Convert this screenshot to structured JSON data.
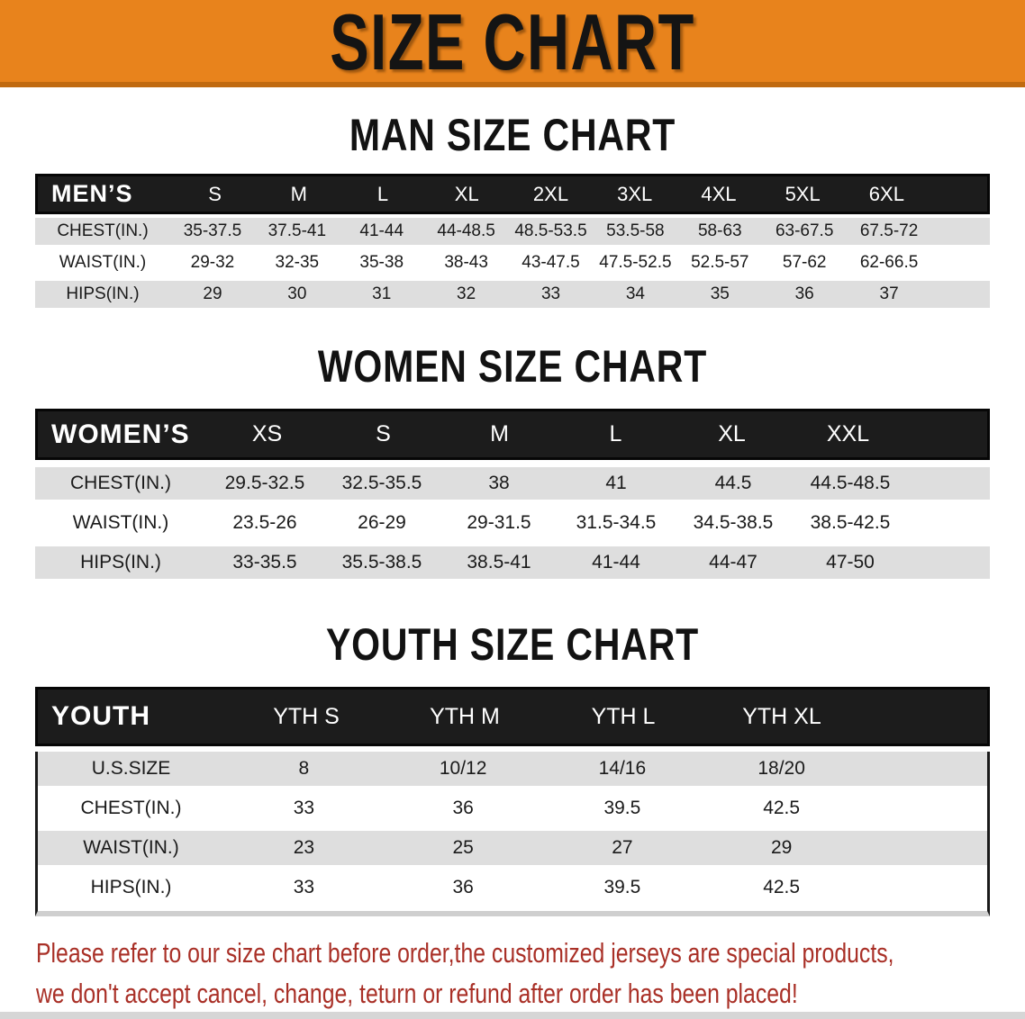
{
  "banner": {
    "title": "SIZE CHART"
  },
  "sections": [
    {
      "heading": "MAN SIZE CHART",
      "table": {
        "header_label": "MEN’S",
        "columns": [
          "S",
          "M",
          "L",
          "XL",
          "2XL",
          "3XL",
          "4XL",
          "5XL",
          "6XL"
        ],
        "rows": [
          {
            "label": "CHEST(IN.)",
            "values": [
              "35-37.5",
              "37.5-41",
              "41-44",
              "44-48.5",
              "48.5-53.5",
              "53.5-58",
              "58-63",
              "63-67.5",
              "67.5-72"
            ]
          },
          {
            "label": "WAIST(IN.)",
            "values": [
              "29-32",
              "32-35",
              "35-38",
              "38-43",
              "43-47.5",
              "47.5-52.5",
              "52.5-57",
              "57-62",
              "62-66.5"
            ]
          },
          {
            "label": "HIPS(IN.)",
            "values": [
              "29",
              "30",
              "31",
              "32",
              "33",
              "34",
              "35",
              "36",
              "37"
            ]
          }
        ]
      }
    },
    {
      "heading": "WOMEN SIZE CHART",
      "table": {
        "header_label": "WOMEN’S",
        "columns": [
          "XS",
          "S",
          "M",
          "L",
          "XL",
          "XXL"
        ],
        "rows": [
          {
            "label": "CHEST(IN.)",
            "values": [
              "29.5-32.5",
              "32.5-35.5",
              "38",
              "41",
              "44.5",
              "44.5-48.5"
            ]
          },
          {
            "label": "WAIST(IN.)",
            "values": [
              "23.5-26",
              "26-29",
              "29-31.5",
              "31.5-34.5",
              "34.5-38.5",
              "38.5-42.5"
            ]
          },
          {
            "label": "HIPS(IN.)",
            "values": [
              "33-35.5",
              "35.5-38.5",
              "38.5-41",
              "41-44",
              "44-47",
              "47-50"
            ]
          }
        ]
      }
    },
    {
      "heading": "YOUTH SIZE CHART",
      "table": {
        "header_label": "YOUTH",
        "columns": [
          "YTH S",
          "YTH M",
          "YTH L",
          "YTH XL"
        ],
        "rows": [
          {
            "label": "U.S.SIZE",
            "values": [
              "8",
              "10/12",
              "14/16",
              "18/20"
            ]
          },
          {
            "label": "CHEST(IN.)",
            "values": [
              "33",
              "36",
              "39.5",
              "42.5"
            ]
          },
          {
            "label": "WAIST(IN.)",
            "values": [
              "23",
              "25",
              "27",
              "29"
            ]
          },
          {
            "label": "HIPS(IN.)",
            "values": [
              "33",
              "36",
              "39.5",
              "42.5"
            ]
          }
        ]
      }
    }
  ],
  "footer": {
    "line1": "Please refer to our size chart before order,the customized jerseys are special products,",
    "line2": "we don't accept cancel, change, teturn or refund after order has been placed!"
  },
  "colors": {
    "banner_orange": "#E8831C",
    "banner_border": "#C06A10",
    "header_black": "#1C1C1C",
    "row_gray": "#DEDEDE",
    "row_white": "#FFFFFF",
    "footer_red": "#A93027"
  }
}
